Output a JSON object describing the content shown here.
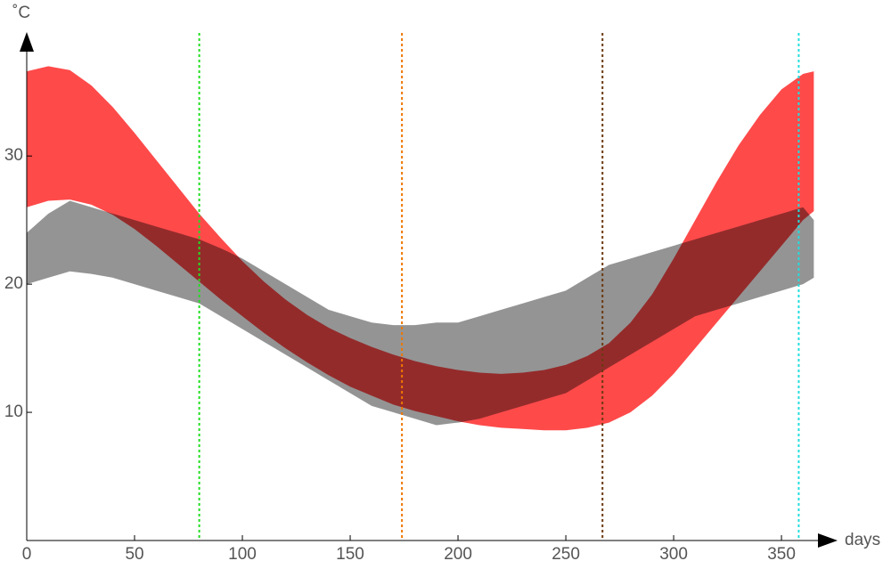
{
  "chart_data": {
    "type": "band",
    "xlabel": "days",
    "ylabel": "˚C",
    "xlim": [
      0,
      376
    ],
    "ylim": [
      0,
      39.6
    ],
    "xticks": [
      0,
      50,
      100,
      150,
      200,
      250,
      300,
      350
    ],
    "yticks": [
      10,
      20,
      30
    ],
    "x": [
      0,
      10,
      20,
      30,
      40,
      50,
      60,
      70,
      80,
      90,
      100,
      110,
      120,
      130,
      140,
      150,
      160,
      170,
      180,
      190,
      200,
      210,
      220,
      230,
      240,
      250,
      260,
      270,
      280,
      290,
      300,
      310,
      320,
      330,
      340,
      350,
      360,
      365
    ],
    "series": [
      {
        "color": "#888888",
        "upper": [
          24,
          25.5,
          26.5,
          26,
          25.5,
          25,
          24.5,
          24,
          23.5,
          22.8,
          22,
          21,
          20,
          19,
          18,
          17.5,
          17,
          16.8,
          16.8,
          17,
          17,
          17.5,
          18,
          18.5,
          19,
          19.5,
          20.5,
          21.5,
          22,
          22.5,
          23,
          23.5,
          24,
          24.5,
          25,
          25.5,
          26,
          25
        ],
        "lower": [
          20,
          20.5,
          21,
          20.8,
          20.5,
          20,
          19.5,
          19,
          18.5,
          17.5,
          16.5,
          15.5,
          14.5,
          13.5,
          12.5,
          11.5,
          10.5,
          10,
          9.5,
          9,
          9.2,
          9.5,
          10,
          10.5,
          11,
          11.5,
          12.5,
          13.5,
          14.5,
          15.5,
          16.5,
          17.5,
          18,
          18.5,
          19,
          19.5,
          20,
          20.5
        ]
      },
      {
        "color": "#ff2a2a",
        "upper": [
          36.6,
          37,
          36.7,
          35.5,
          33.8,
          31.8,
          29.7,
          27.6,
          25.5,
          23.6,
          21.8,
          20.2,
          18.8,
          17.6,
          16.6,
          15.8,
          15.1,
          14.5,
          14,
          13.6,
          13.3,
          13.1,
          13,
          13.1,
          13.3,
          13.7,
          14.4,
          15.4,
          17,
          19.2,
          22,
          25,
          28,
          30.8,
          33.2,
          35.2,
          36.4,
          36.6
        ],
        "lower": [
          26,
          26.5,
          26.6,
          26.2,
          25.4,
          24.3,
          23,
          21.6,
          20.2,
          18.8,
          17.5,
          16.2,
          15,
          13.9,
          12.9,
          12,
          11.3,
          10.6,
          10.1,
          9.7,
          9.3,
          9,
          8.8,
          8.7,
          8.6,
          8.6,
          8.8,
          9.2,
          10,
          11.3,
          13,
          15,
          17,
          19,
          21,
          23,
          25,
          25.7
        ]
      }
    ],
    "vlines": [
      {
        "x": 80,
        "color": "#22dd22"
      },
      {
        "x": 174,
        "color": "#ee7700"
      },
      {
        "x": 267,
        "color": "#6b3a10"
      },
      {
        "x": 358,
        "color": "#22dddd"
      }
    ]
  }
}
